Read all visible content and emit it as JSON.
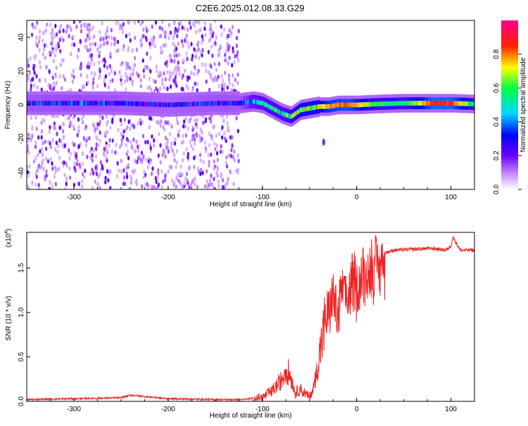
{
  "title": "C2E6.2025.012.08.33.G29",
  "chart_data": [
    {
      "type": "heatmap",
      "xlabel": "Height of straight line (km)",
      "ylabel": "Frequency (Hz)",
      "xlim": [
        -350,
        125
      ],
      "ylim": [
        -50,
        50
      ],
      "x_ticks": [
        -300,
        -200,
        -100,
        0,
        100
      ],
      "y_ticks": [
        -40,
        -20,
        0,
        20,
        40
      ],
      "colorbar": {
        "label": "Normalized spectral amplitude",
        "range": [
          0,
          1
        ],
        "ticks": [
          "0.0",
          "0.2",
          "0.4",
          "0.6",
          "0.8"
        ],
        "colors": [
          "#ffffff",
          "#8a2be2",
          "#0000ff",
          "#00ffff",
          "#00ff00",
          "#ffff00",
          "#ff0000",
          "#ff00aa"
        ]
      },
      "track": {
        "x": [
          -350,
          -300,
          -250,
          -200,
          -150,
          -125,
          -110,
          -100,
          -90,
          -80,
          -70,
          -60,
          -50,
          -40,
          -30,
          -20,
          -10,
          0,
          20,
          50,
          80,
          100,
          125
        ],
        "center_hz": [
          1,
          1,
          1,
          0,
          1,
          1,
          2,
          1,
          -2,
          -5,
          -7,
          -3,
          -2,
          -1,
          -1,
          0,
          0,
          0,
          0.5,
          1,
          1,
          1,
          0.5
        ],
        "amplitude": [
          0.3,
          0.32,
          0.3,
          0.28,
          0.3,
          0.3,
          0.45,
          0.5,
          0.55,
          0.5,
          0.6,
          0.7,
          0.65,
          0.7,
          0.78,
          0.8,
          0.82,
          0.75,
          0.6,
          0.55,
          0.85,
          0.85,
          0.55
        ]
      },
      "noise_region_x": [
        -350,
        -125
      ]
    },
    {
      "type": "line",
      "xlabel": "Height of straight line (km)",
      "ylabel": "SNR (10 * v/v)",
      "y_multiplier": "(x10",
      "y_multiplier_exp": "4",
      "y_multiplier_close": ")",
      "xlim": [
        -350,
        125
      ],
      "ylim": [
        0,
        1.9
      ],
      "x_ticks": [
        -300,
        -200,
        -100,
        0,
        100
      ],
      "y_ticks": [
        0.0,
        0.5,
        1.0,
        1.5
      ],
      "color": "#ee2222",
      "series": [
        {
          "x": [
            -350,
            -300,
            -250,
            -240,
            -200,
            -150,
            -120,
            -100,
            -90,
            -80,
            -75,
            -70,
            -65,
            -60,
            -50,
            -45,
            -40,
            -35,
            -30,
            -25,
            -20,
            -15,
            -10,
            -5,
            0,
            5,
            10,
            20,
            30,
            40,
            60,
            80,
            95,
            100,
            102,
            110,
            125
          ],
          "y": [
            0.02,
            0.03,
            0.04,
            0.07,
            0.03,
            0.02,
            0.02,
            0.05,
            0.12,
            0.25,
            0.4,
            0.3,
            0.1,
            0.15,
            0.05,
            0.2,
            0.5,
            0.9,
            1.1,
            1.3,
            1.0,
            1.4,
            1.2,
            1.45,
            1.35,
            1.5,
            1.55,
            1.62,
            1.67,
            1.7,
            1.71,
            1.72,
            1.7,
            1.75,
            1.85,
            1.7,
            1.7
          ]
        }
      ]
    }
  ]
}
